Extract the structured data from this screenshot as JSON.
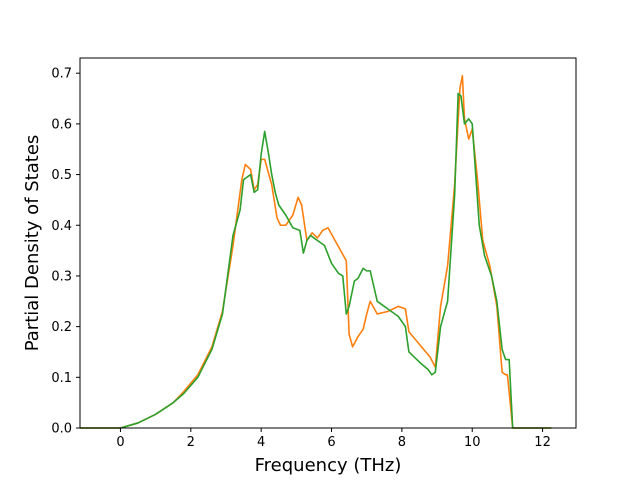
{
  "chart_data": {
    "type": "line",
    "title": "",
    "xlabel": "Frequency (THz)",
    "ylabel": "Partial Density of States",
    "xlim": [
      -1.15,
      12.95
    ],
    "ylim": [
      0.0,
      0.73
    ],
    "xticks": [
      0,
      2,
      4,
      6,
      8,
      10,
      12
    ],
    "yticks": [
      0.0,
      0.1,
      0.2,
      0.3,
      0.4,
      0.5,
      0.6,
      0.7
    ],
    "xtick_labels": [
      "0",
      "2",
      "4",
      "6",
      "8",
      "10",
      "12"
    ],
    "ytick_labels": [
      "0.0",
      "0.1",
      "0.2",
      "0.3",
      "0.4",
      "0.5",
      "0.6",
      "0.7"
    ],
    "grid": false,
    "legend": "none",
    "series": [
      {
        "color": "#ff7f0e",
        "x": [
          -1.15,
          0.0,
          0.5,
          1.0,
          1.5,
          1.8,
          2.2,
          2.6,
          2.9,
          3.2,
          3.45,
          3.55,
          3.7,
          3.8,
          3.9,
          4.0,
          4.1,
          4.3,
          4.45,
          4.55,
          4.7,
          4.9,
          5.05,
          5.15,
          5.3,
          5.45,
          5.6,
          5.75,
          5.9,
          6.1,
          6.3,
          6.42,
          6.5,
          6.6,
          6.75,
          6.9,
          7.0,
          7.1,
          7.3,
          7.6,
          7.9,
          8.1,
          8.2,
          8.5,
          8.8,
          8.95,
          9.1,
          9.3,
          9.5,
          9.65,
          9.72,
          9.78,
          9.9,
          10.0,
          10.15,
          10.3,
          10.5,
          10.7,
          10.85,
          10.95,
          11.0,
          11.08,
          11.15,
          12.25
        ],
        "values": [
          0.0,
          0.0,
          0.01,
          0.027,
          0.05,
          0.072,
          0.105,
          0.16,
          0.23,
          0.36,
          0.49,
          0.52,
          0.51,
          0.47,
          0.48,
          0.53,
          0.53,
          0.48,
          0.415,
          0.4,
          0.4,
          0.42,
          0.455,
          0.44,
          0.37,
          0.385,
          0.375,
          0.39,
          0.395,
          0.37,
          0.345,
          0.33,
          0.185,
          0.16,
          0.18,
          0.195,
          0.225,
          0.25,
          0.225,
          0.23,
          0.24,
          0.235,
          0.19,
          0.165,
          0.14,
          0.12,
          0.24,
          0.32,
          0.48,
          0.67,
          0.695,
          0.61,
          0.57,
          0.59,
          0.49,
          0.37,
          0.32,
          0.24,
          0.11,
          0.105,
          0.105,
          0.05,
          0.0,
          0.0
        ]
      },
      {
        "color": "#2ca02c",
        "x": [
          -1.15,
          0.0,
          0.5,
          1.0,
          1.5,
          1.8,
          2.2,
          2.6,
          2.9,
          3.2,
          3.4,
          3.5,
          3.7,
          3.8,
          3.9,
          4.0,
          4.1,
          4.2,
          4.3,
          4.4,
          4.5,
          4.7,
          4.9,
          5.1,
          5.2,
          5.3,
          5.4,
          5.5,
          5.6,
          5.8,
          6.0,
          6.2,
          6.32,
          6.42,
          6.5,
          6.65,
          6.75,
          6.9,
          7.0,
          7.1,
          7.3,
          7.6,
          7.9,
          8.1,
          8.2,
          8.5,
          8.75,
          8.85,
          8.95,
          9.1,
          9.3,
          9.5,
          9.6,
          9.68,
          9.78,
          9.9,
          10.0,
          10.2,
          10.35,
          10.55,
          10.7,
          10.85,
          10.95,
          11.05,
          11.12,
          11.15,
          12.25
        ],
        "values": [
          0.0,
          0.0,
          0.01,
          0.027,
          0.05,
          0.068,
          0.1,
          0.155,
          0.225,
          0.38,
          0.43,
          0.49,
          0.5,
          0.465,
          0.47,
          0.54,
          0.585,
          0.545,
          0.5,
          0.465,
          0.44,
          0.42,
          0.395,
          0.39,
          0.345,
          0.37,
          0.38,
          0.375,
          0.37,
          0.36,
          0.325,
          0.305,
          0.3,
          0.225,
          0.24,
          0.29,
          0.295,
          0.315,
          0.31,
          0.31,
          0.25,
          0.235,
          0.22,
          0.2,
          0.15,
          0.13,
          0.115,
          0.105,
          0.11,
          0.2,
          0.25,
          0.46,
          0.66,
          0.655,
          0.6,
          0.61,
          0.6,
          0.4,
          0.34,
          0.3,
          0.25,
          0.155,
          0.135,
          0.135,
          0.04,
          0.0,
          0.0
        ]
      }
    ]
  }
}
